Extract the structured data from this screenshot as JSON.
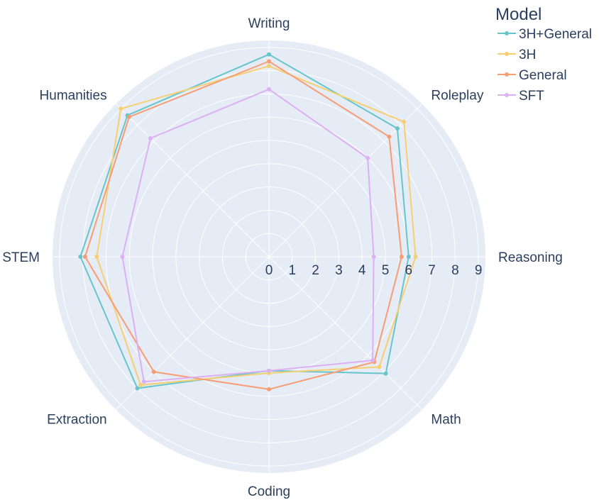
{
  "chart_data": {
    "type": "radar",
    "categories": [
      "Writing",
      "Roleplay",
      "Reasoning",
      "Math",
      "Coding",
      "Extraction",
      "STEM",
      "Humanities"
    ],
    "radial_ticks": [
      0,
      1,
      2,
      3,
      4,
      5,
      6,
      7,
      8,
      9
    ],
    "rlim": [
      0,
      9.3
    ],
    "legend": {
      "title": "Model",
      "placement": "top-right"
    },
    "series": [
      {
        "name": "3H+General",
        "color": "#66c5cc",
        "values": [
          8.7,
          7.8,
          6.0,
          7.1,
          4.9,
          8.0,
          8.1,
          8.6
        ]
      },
      {
        "name": "3H",
        "color": "#f6cf71",
        "values": [
          8.2,
          8.2,
          6.3,
          6.7,
          5.0,
          7.8,
          7.4,
          9.0
        ]
      },
      {
        "name": "General",
        "color": "#f89c74",
        "values": [
          8.4,
          7.3,
          5.7,
          6.4,
          5.7,
          7.0,
          7.9,
          8.5
        ]
      },
      {
        "name": "SFT",
        "color": "#dcb0f2",
        "values": [
          7.2,
          6.0,
          4.5,
          6.3,
          4.9,
          7.6,
          6.3,
          7.2
        ]
      }
    ]
  }
}
